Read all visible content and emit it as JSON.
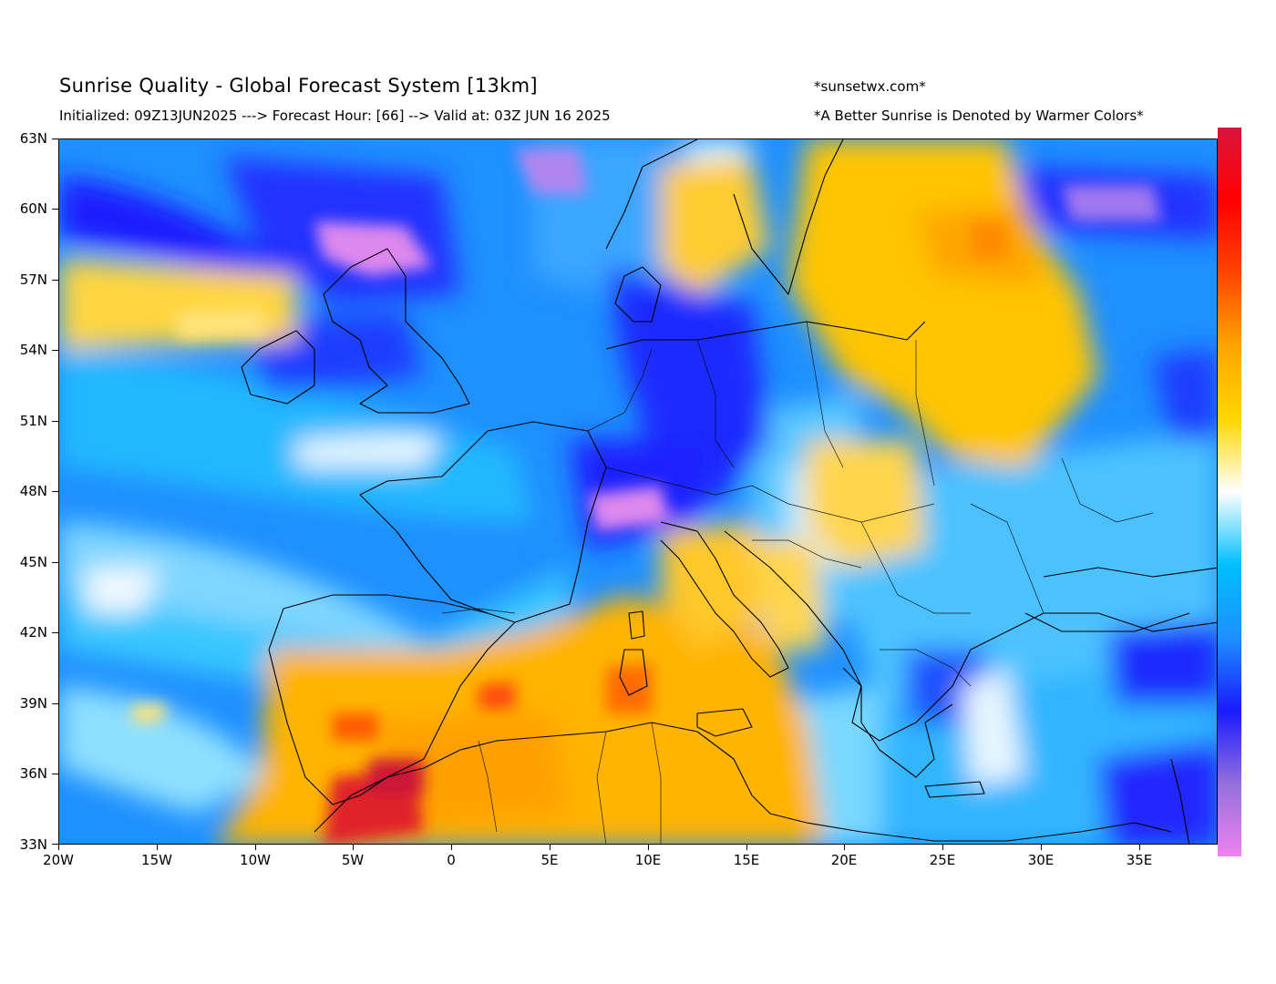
{
  "header": {
    "title": "Sunrise Quality - Global Forecast System [13km]",
    "subtitle": "Initialized: 09Z13JUN2025 ---> Forecast Hour: [66] --> Valid at: 03Z JUN 16 2025",
    "credit": "*sunsetwx.com*",
    "note": "*A Better Sunrise is Denoted by Warmer Colors*"
  },
  "map": {
    "projection": "equirectangular",
    "lon_range": [
      -20,
      39
    ],
    "lat_range": [
      33,
      63
    ],
    "y_labels": [
      "63N",
      "60N",
      "57N",
      "54N",
      "51N",
      "48N",
      "45N",
      "42N",
      "39N",
      "36N",
      "33N"
    ],
    "x_labels": [
      "20W",
      "15W",
      "10W",
      "5W",
      "0",
      "5E",
      "10E",
      "15E",
      "20E",
      "25E",
      "30E",
      "35E"
    ],
    "colors": {
      "worst": "#ee82ee",
      "poor_dark": "#1a1aff",
      "poor": "#1e90ff",
      "fair": "#00bfff",
      "neutral": "#ffffff",
      "good": "#ffd700",
      "very_good": "#ffa500",
      "best": "#dc143c"
    }
  },
  "colorbar": {
    "stops": [
      "#ee82ee",
      "#9370db",
      "#1a1aff",
      "#1e90ff",
      "#00bfff",
      "#ffffff",
      "#ffd700",
      "#ffa500",
      "#ff4500",
      "#ff0000",
      "#dc143c"
    ]
  }
}
